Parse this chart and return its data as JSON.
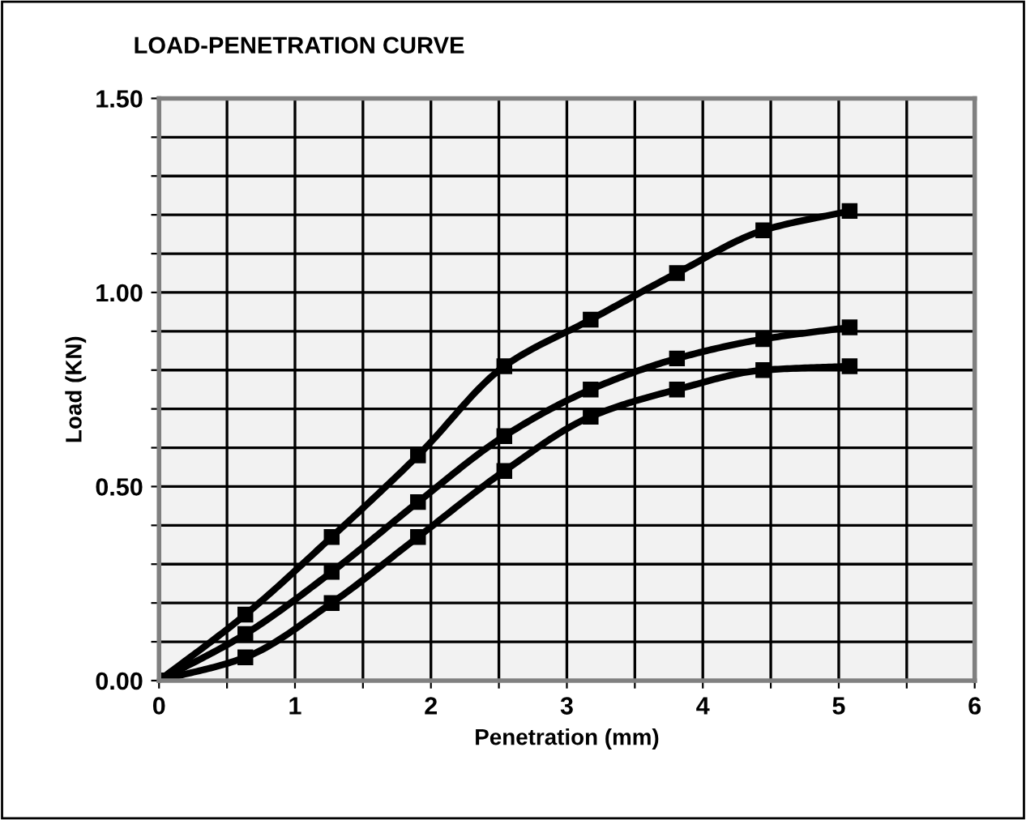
{
  "chart_data": {
    "type": "line",
    "title": "LOAD-PENETRATION CURVE",
    "xlabel": "Penetration (mm)",
    "ylabel": "Load (KN)",
    "x": [
      0,
      0.635,
      1.27,
      1.905,
      2.54,
      3.175,
      3.81,
      4.445,
      5.08
    ],
    "series": [
      {
        "color": "#000000",
        "values": [
          0,
          0.17,
          0.37,
          0.58,
          0.81,
          0.93,
          1.05,
          1.16,
          1.21
        ]
      },
      {
        "color": "#000000",
        "values": [
          0,
          0.12,
          0.28,
          0.46,
          0.63,
          0.75,
          0.83,
          0.88,
          0.91
        ]
      },
      {
        "color": "#000000",
        "values": [
          0,
          0.06,
          0.2,
          0.37,
          0.54,
          0.68,
          0.75,
          0.8,
          0.81
        ]
      }
    ],
    "xlim": [
      0,
      6
    ],
    "xticks": [
      0,
      {
        "value": 0.5,
        "label": null
      },
      1,
      {
        "value": 1.5,
        "label": null
      },
      2,
      {
        "value": 2.5,
        "label": null
      },
      3,
      {
        "value": 3.5,
        "label": null
      },
      4,
      {
        "value": 4.5,
        "label": null
      },
      5,
      {
        "value": 5.5,
        "label": null
      },
      6
    ],
    "ylim": [
      0,
      1.5
    ],
    "yticks": [
      {
        "value": 0,
        "label": "0.00"
      },
      {
        "value": 0.1,
        "label": null
      },
      {
        "value": 0.2,
        "label": null
      },
      {
        "value": 0.3,
        "label": null
      },
      {
        "value": 0.4,
        "label": null
      },
      {
        "value": 0.5,
        "label": "0.50"
      },
      {
        "value": 0.6,
        "label": null
      },
      {
        "value": 0.7,
        "label": null
      },
      {
        "value": 0.8,
        "label": null
      },
      {
        "value": 0.9,
        "label": null
      },
      {
        "value": 1.0,
        "label": "1.00"
      },
      {
        "value": 1.1,
        "label": null
      },
      {
        "value": 1.2,
        "label": null
      },
      {
        "value": 1.3,
        "label": null
      },
      {
        "value": 1.4,
        "label": null
      },
      {
        "value": 1.5,
        "label": "1.50"
      }
    ],
    "grid": true,
    "marker": "square",
    "line_style": "solid",
    "legend": false
  }
}
